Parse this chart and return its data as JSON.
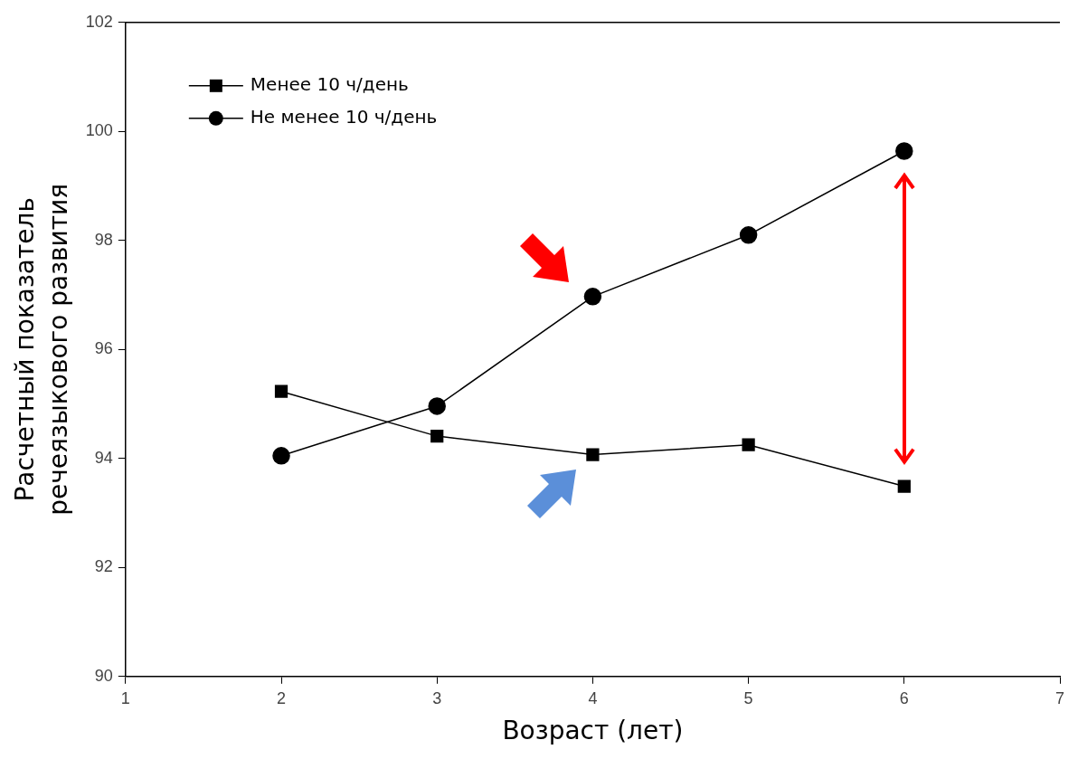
{
  "chart_data": {
    "type": "line",
    "xlabel": "Возраст (лет)",
    "ylabel": "Расчетный показатель\nречеязыкового развития",
    "x": [
      2,
      3,
      4,
      5,
      6
    ],
    "series": [
      {
        "name": "Менее 10 ч/день",
        "color": "#000000",
        "marker": "square",
        "values": [
          95.23,
          94.41,
          94.07,
          94.25,
          93.49
        ]
      },
      {
        "name": "Не менее 10 ч/день",
        "color": "#000000",
        "marker": "circle",
        "values": [
          94.05,
          94.96,
          96.97,
          98.1,
          99.64
        ]
      }
    ],
    "xlim": [
      1,
      7
    ],
    "xticks": [
      1,
      2,
      3,
      4,
      5,
      6,
      7
    ],
    "ylim": [
      90,
      102
    ],
    "yticks": [
      90,
      92,
      94,
      96,
      98,
      100,
      102
    ],
    "grid": false,
    "legend": "top left",
    "line_style": "solid"
  }
}
